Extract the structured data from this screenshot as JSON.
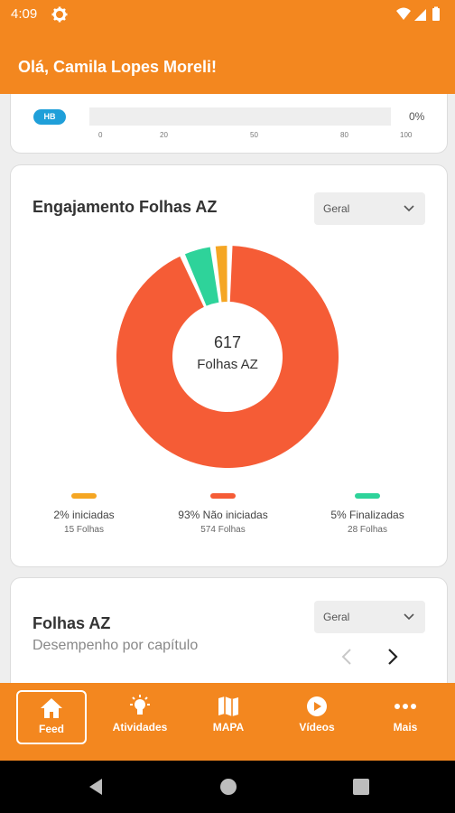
{
  "status_bar": {
    "time": "4:09"
  },
  "header": {
    "greeting": "Olá, Camila Lopes Moreli!"
  },
  "progress_card": {
    "badge": "HB",
    "percent_label": "0%",
    "progress_value": 0,
    "ticks": [
      "0",
      "20",
      "50",
      "80",
      "100"
    ]
  },
  "engagement_card": {
    "title": "Engajamento Folhas AZ",
    "select_value": "Geral",
    "center_value": "617",
    "center_label": "Folhas AZ",
    "legend": [
      {
        "percent": "2% iniciadas",
        "count": "15 Folhas",
        "color": "#f5a623"
      },
      {
        "percent": "93% Não iniciadas",
        "count": "574 Folhas",
        "color": "#f55c36"
      },
      {
        "percent": "5% Finalizadas",
        "count": "28 Folhas",
        "color": "#2ed39a"
      }
    ]
  },
  "chart_data": {
    "type": "pie",
    "categories": [
      "Não iniciadas",
      "Finalizadas",
      "iniciadas"
    ],
    "values": [
      574,
      28,
      15
    ],
    "colors": [
      "#f55c36",
      "#2ed39a",
      "#f5a623"
    ],
    "total": 617
  },
  "chapter_card": {
    "title": "Folhas AZ",
    "subtitle": "Desempenho por capítulo",
    "select_value": "Geral"
  },
  "bottom_nav": [
    {
      "label": "Feed",
      "icon": "home-icon",
      "active": true
    },
    {
      "label": "Atividades",
      "icon": "lightbulb-icon",
      "active": false
    },
    {
      "label": "MAPA",
      "icon": "map-icon",
      "active": false
    },
    {
      "label": "Vídeos",
      "icon": "play-icon",
      "active": false
    },
    {
      "label": "Mais",
      "icon": "more-icon",
      "active": false
    }
  ],
  "colors": {
    "brand": "#f3871f",
    "badge": "#1f9fd9"
  }
}
